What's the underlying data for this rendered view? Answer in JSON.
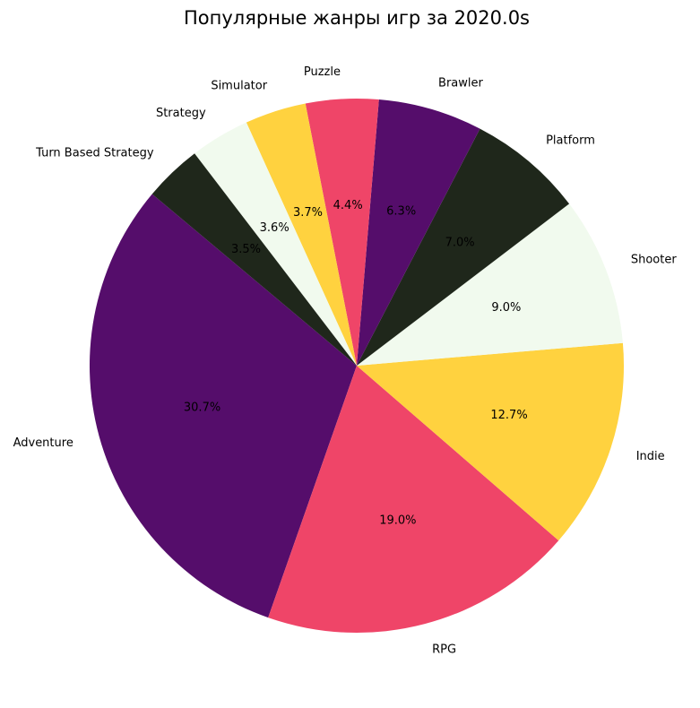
{
  "chart_data": {
    "type": "pie",
    "title": "Популярные жанры игр за 2020.0s",
    "start_angle_deg": 140,
    "direction": "counterclockwise",
    "categories": [
      "Adventure",
      "RPG",
      "Indie",
      "Shooter",
      "Platform",
      "Brawler",
      "Puzzle",
      "Simulator",
      "Strategy",
      "Turn Based Strategy"
    ],
    "values": [
      30.7,
      19.0,
      12.7,
      9.0,
      7.0,
      6.3,
      4.4,
      3.7,
      3.6,
      3.5
    ],
    "value_labels": [
      "30.7%",
      "19.0%",
      "12.7%",
      "9.0%",
      "7.0%",
      "6.3%",
      "4.4%",
      "3.7%",
      "3.6%",
      "3.5%"
    ],
    "colors": [
      "#550d6b",
      "#ef4568",
      "#ffd23f",
      "#f1faee",
      "#1f271b"
    ]
  }
}
